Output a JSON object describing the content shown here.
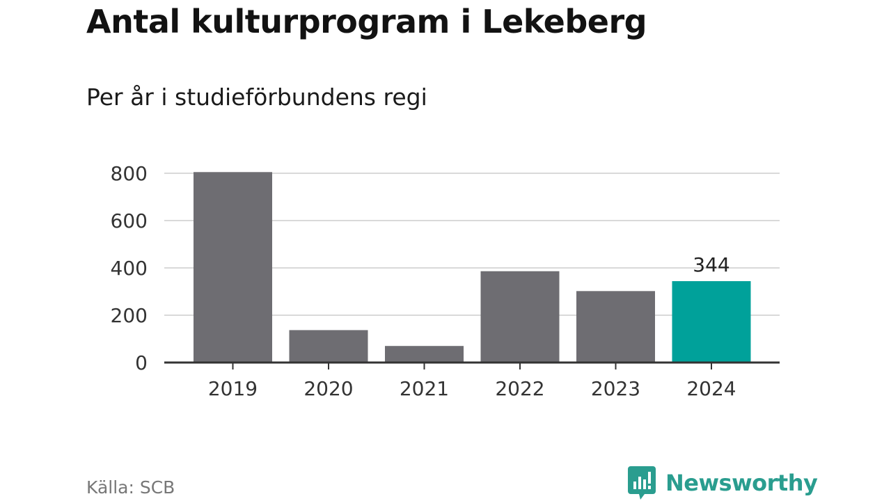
{
  "title": "Antal kulturprogram i Lekeberg",
  "subtitle": "Per år i studieförbundens regi",
  "source": "Källa: SCB",
  "brand": {
    "name": "Newsworthy",
    "icon": "newsworthy-logo-icon",
    "color": "#2a9d8f"
  },
  "colors": {
    "bar": "#6e6d72",
    "highlight": "#00a19a",
    "grid": "#d9d9d9",
    "axis": "#333333"
  },
  "chart_data": {
    "type": "bar",
    "title": "Antal kulturprogram i Lekeberg",
    "subtitle": "Per år i studieförbundens regi",
    "categories": [
      "2019",
      "2020",
      "2021",
      "2022",
      "2023",
      "2024"
    ],
    "values": [
      805,
      137,
      70,
      386,
      302,
      344
    ],
    "highlight_index": 5,
    "data_labels": [
      "",
      "",
      "",
      "",
      "",
      "344"
    ],
    "ylim": [
      0,
      800
    ],
    "yticks": [
      0,
      200,
      400,
      600,
      800
    ],
    "grid": true,
    "legend": "none"
  }
}
